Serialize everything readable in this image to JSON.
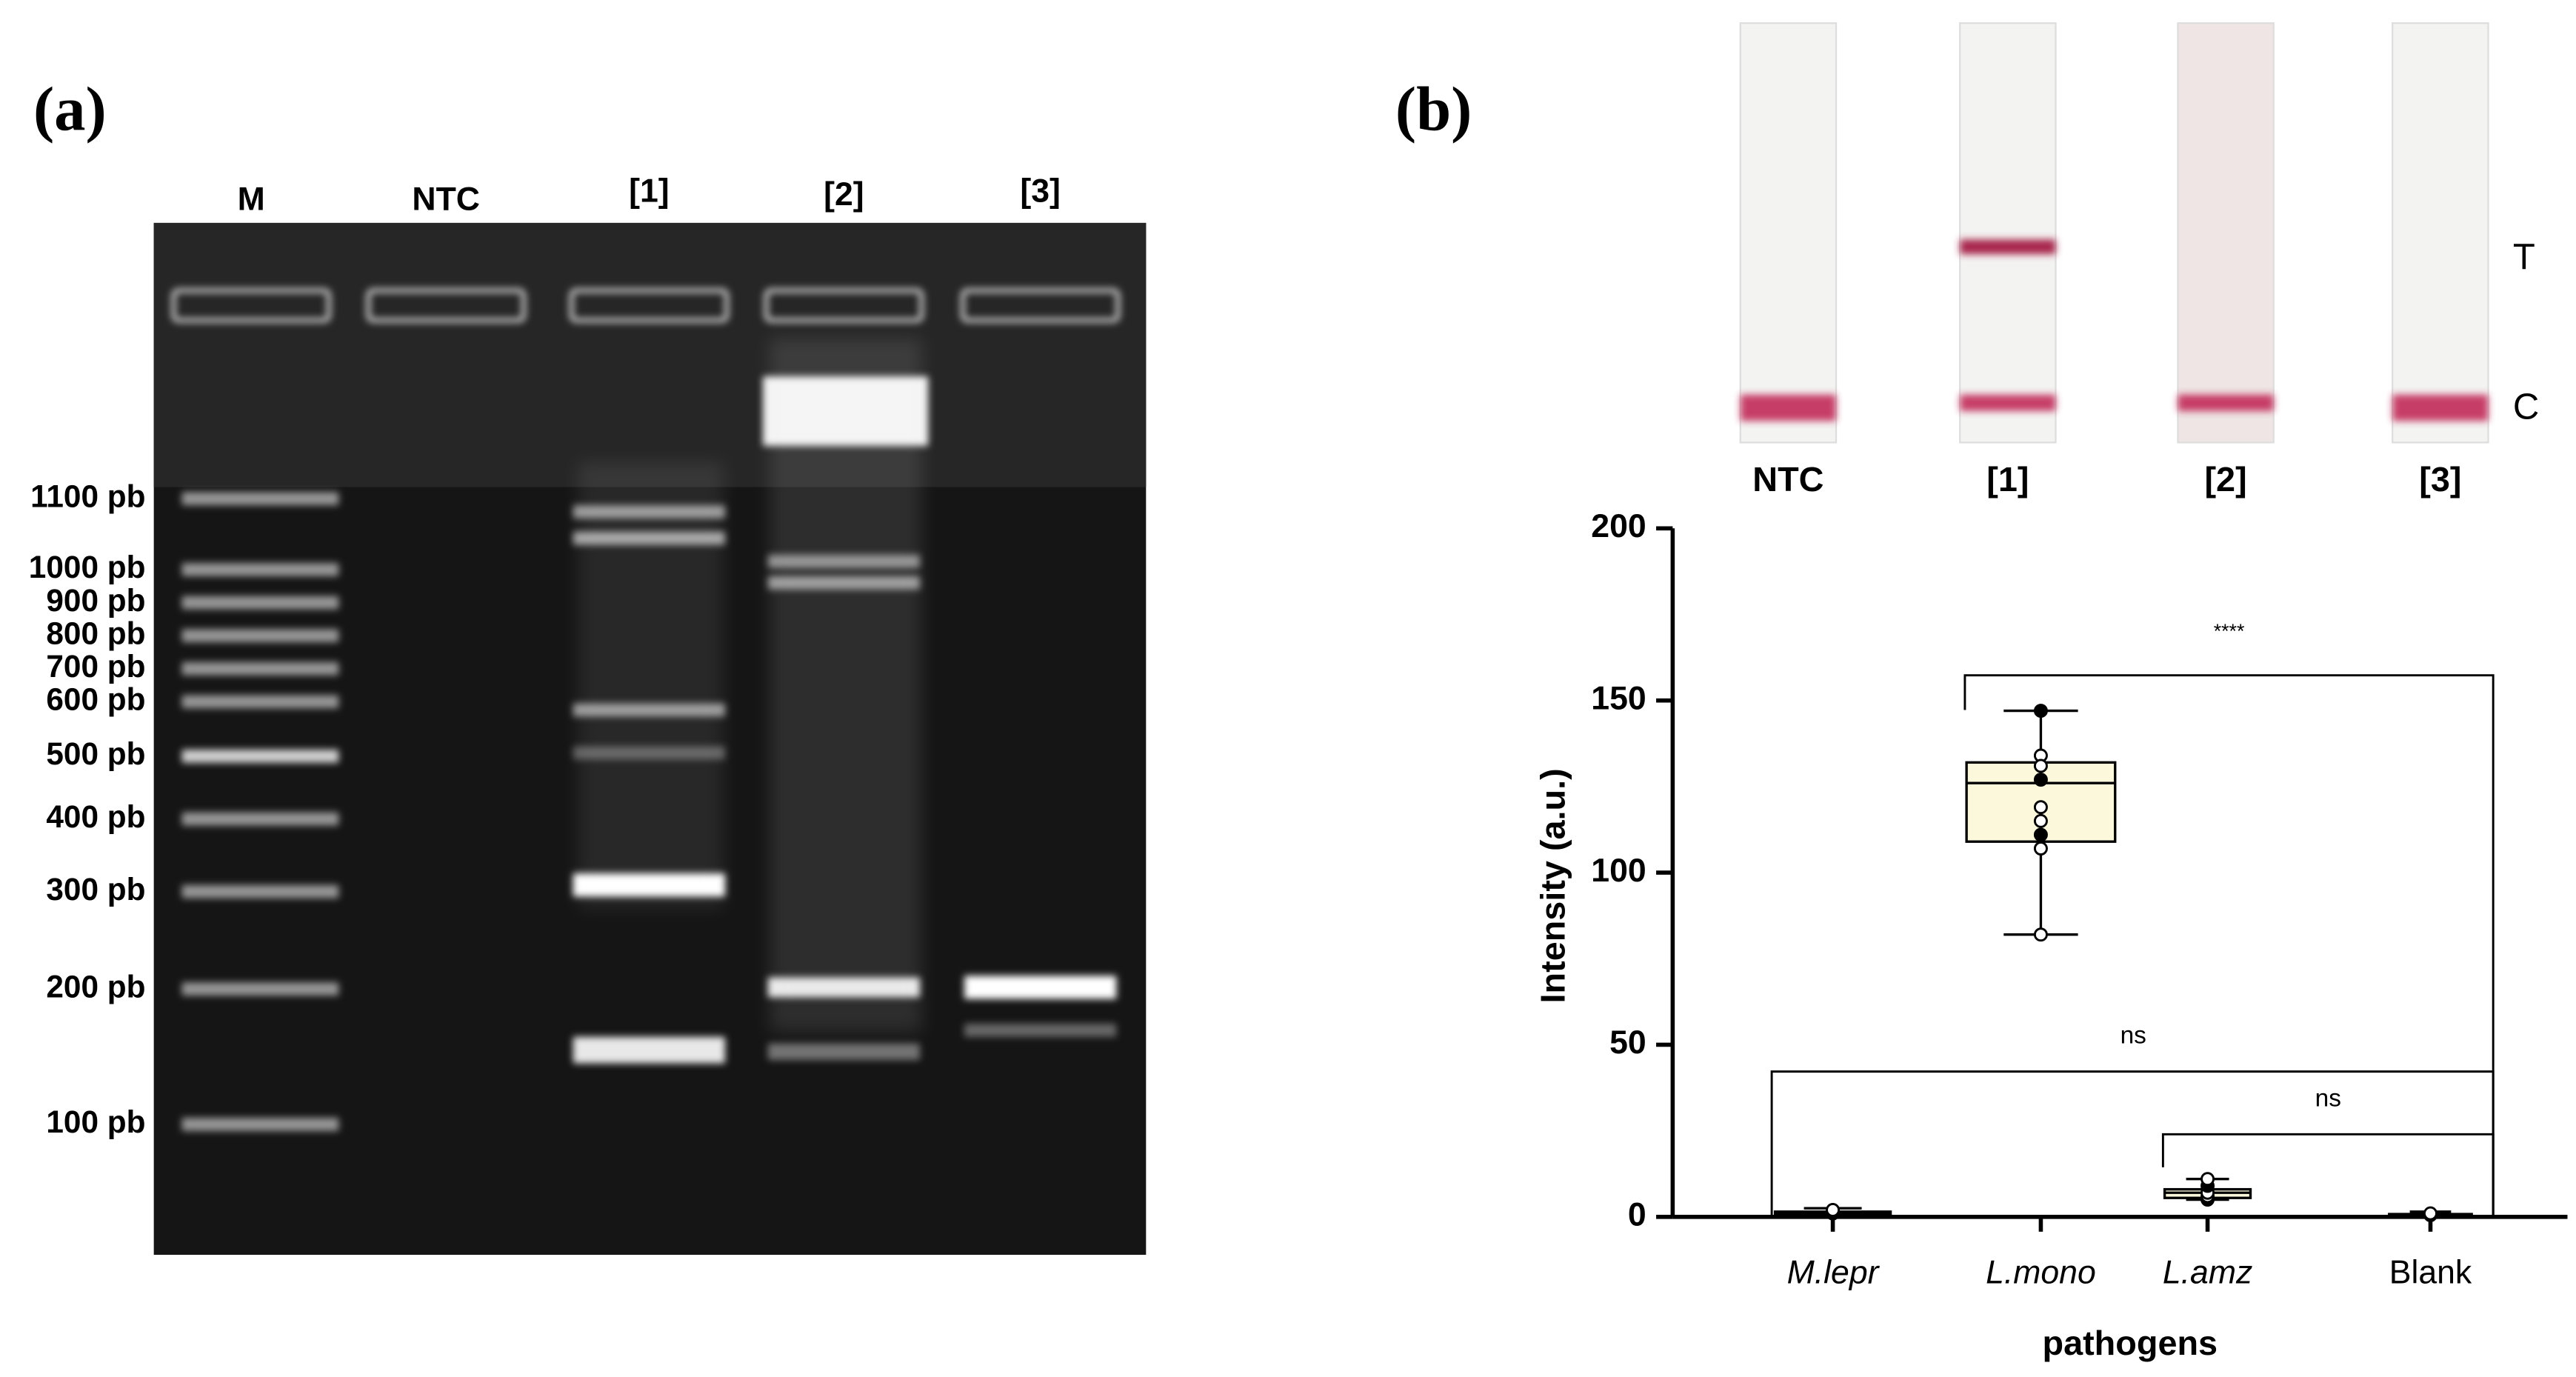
{
  "panel_a": {
    "label": "(a)",
    "lanes": [
      "M",
      "NTC",
      "[1]",
      "[2]",
      "[3]"
    ],
    "ladder": [
      "1100 pb",
      "1000 pb",
      "900 pb",
      "800 pb",
      "700 pb",
      "600 pb",
      "500 pb",
      "400 pb",
      "300 pb",
      "200 pb",
      "100 pb"
    ]
  },
  "panel_b": {
    "label": "(b)",
    "strips": [
      "NTC",
      "[1]",
      "[2]",
      "[3]"
    ],
    "lines": [
      "T",
      "C"
    ]
  },
  "chart_data": {
    "type": "box",
    "y_label": "Intensity (a.u.)",
    "x_label": "pathogens",
    "categories": [
      "M.lepr",
      "L.mono",
      "L.amz",
      "Blank"
    ],
    "ylim": [
      0,
      200
    ],
    "yticks": [
      0,
      50,
      100,
      150,
      200
    ],
    "box_fill": "#fbf8dc",
    "color": "#000000",
    "boxes": [
      {
        "min": 0.5,
        "q1": 0.8,
        "median": 1,
        "q3": 1.5,
        "max": 2.5,
        "points": [
          1,
          2
        ]
      },
      {
        "min": 82,
        "q1": 109,
        "median": 126,
        "q3": 132,
        "max": 147,
        "points": [
          147,
          134,
          131,
          127,
          119,
          115,
          111,
          107,
          82
        ]
      },
      {
        "min": 5,
        "q1": 5.5,
        "median": 7,
        "q3": 8,
        "max": 11,
        "points": [
          5,
          6,
          7,
          9,
          11
        ]
      },
      {
        "min": 0,
        "q1": 0.3,
        "median": 0.5,
        "q3": 0.8,
        "max": 1.5,
        "points": [
          0.5,
          1
        ]
      }
    ],
    "annotations": [
      "****",
      "ns",
      "ns"
    ]
  }
}
